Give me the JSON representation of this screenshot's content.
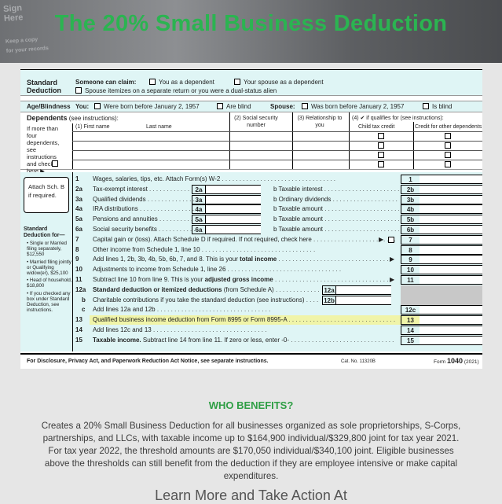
{
  "header": {
    "title": "The 20% Small Business Deduction",
    "bg_words": [
      "Sign",
      "Here",
      "Keep a copy",
      "for your records"
    ]
  },
  "form": {
    "standard_deduction": {
      "label": "Standard Deduction",
      "someone_can_claim": "Someone can claim:",
      "you_dependent": "You as a dependent",
      "spouse_dependent": "Your spouse as a dependent",
      "spouse_itemizes": "Spouse itemizes on a separate return or you were a dual-status alien"
    },
    "age_blindness": {
      "label": "Age/Blindness",
      "you": "You:",
      "born_before": "Were born before January 2, 1957",
      "blind": "Are blind",
      "spouse": "Spouse:",
      "spouse_born_before": "Was born before January 2, 1957",
      "spouse_blind": "Is blind"
    },
    "dependents": {
      "label": "Dependents",
      "see_instructions": "(see instructions):",
      "col1": "(1) First name",
      "col1b": "Last name",
      "col2": "(2) Social security number",
      "col3": "(3) Relationship to you",
      "col4": "(4) ✔ if qualifies for (see instructions):",
      "col4a": "Child tax credit",
      "col4b": "Credit for other dependents",
      "side_note": "If more than four dependents, see instructions and check here ▶"
    },
    "attach_note": "Attach Sch. B if required.",
    "std_ded_sidebar": {
      "title": "Standard Deduction for—",
      "items": [
        "• Single or Married filing separately, $12,550",
        "• Married filing jointly or Qualifying widow(er), $25,100",
        "• Head of household, $18,800",
        "• If you checked any box under Standard Deduction, see instructions."
      ]
    },
    "lines": [
      {
        "num": "1",
        "text": "Wages, salaries, tips, etc. Attach Form(s) W-2",
        "box": "1"
      },
      {
        "num": "2a",
        "text": "Tax-exempt interest",
        "mid": "2a",
        "b_text": "b  Taxable interest",
        "box": "2b"
      },
      {
        "num": "3a",
        "text": "Qualified dividends",
        "mid": "3a",
        "b_text": "b  Ordinary dividends",
        "box": "3b"
      },
      {
        "num": "4a",
        "text": "IRA distributions",
        "mid": "4a",
        "b_text": "b  Taxable amount",
        "box": "4b"
      },
      {
        "num": "5a",
        "text": "Pensions and annuities",
        "mid": "5a",
        "b_text": "b  Taxable amount",
        "box": "5b"
      },
      {
        "num": "6a",
        "text": "Social security benefits",
        "mid": "6a",
        "b_text": "b  Taxable amount",
        "box": "6b"
      },
      {
        "num": "7",
        "text": "Capital gain or (loss). Attach Schedule D if required. If not required, check here",
        "box": "7"
      },
      {
        "num": "8",
        "text": "Other income from Schedule 1, line 10",
        "box": "8"
      },
      {
        "num": "9",
        "text": "Add lines 1, 2b, 3b, 4b, 5b, 6b, 7, and 8. This is your",
        "bold_tail": "total income",
        "box": "9"
      },
      {
        "num": "10",
        "text": "Adjustments to income from Schedule 1, line 26",
        "box": "10"
      },
      {
        "num": "11",
        "text": "Subtract line 10 from line 9. This is your",
        "bold_tail": "adjusted gross income",
        "box": "11"
      },
      {
        "num": "12a",
        "text": "Standard deduction or itemized deductions",
        "tail": "(from Schedule A)",
        "mid": "12a"
      },
      {
        "num": "b",
        "text": "Charitable contributions if you take the standard deduction (see instructions)",
        "mid": "12b"
      },
      {
        "num": "c",
        "text": "Add lines 12a and 12b",
        "box": "12c"
      },
      {
        "num": "13",
        "text": "Qualified business income deduction from Form 8995 or Form 8995-A",
        "box": "13"
      },
      {
        "num": "14",
        "text": "Add lines 12c and 13",
        "box": "14"
      },
      {
        "num": "15",
        "text": "Taxable income.",
        "tail": "Subtract line 14 from line 11. If zero or less, enter -0-",
        "box": "15"
      }
    ],
    "footer": {
      "disclosure": "For Disclosure, Privacy Act, and Paperwork Reduction Act Notice, see separate instructions.",
      "cat_no": "Cat. No. 11320B",
      "form_label": "Form",
      "form_num": "1040",
      "year": "(2021)"
    }
  },
  "benefits": {
    "heading": "WHO BENEFITS?",
    "body": "Creates a 20% Small Business Deduction for all businesses organized as sole proprietorships, S-Corps, partnerships, and LLCs, with taxable income up to $164,900 individual/$329,800 joint for tax year 2021. For tax year 2022, the threshold amounts are $170,050 individual/$340,100 joint. Eligible businesses above the thresholds can still benefit from the deduction if they are employee intensive or make capital expenditures.",
    "cta": "Learn More and Take Action At"
  },
  "colors": {
    "title_green": "#2bb451",
    "heading_green": "#2e9e44",
    "aqua": "#dff5f5",
    "highlight": "#f0f4a8"
  }
}
